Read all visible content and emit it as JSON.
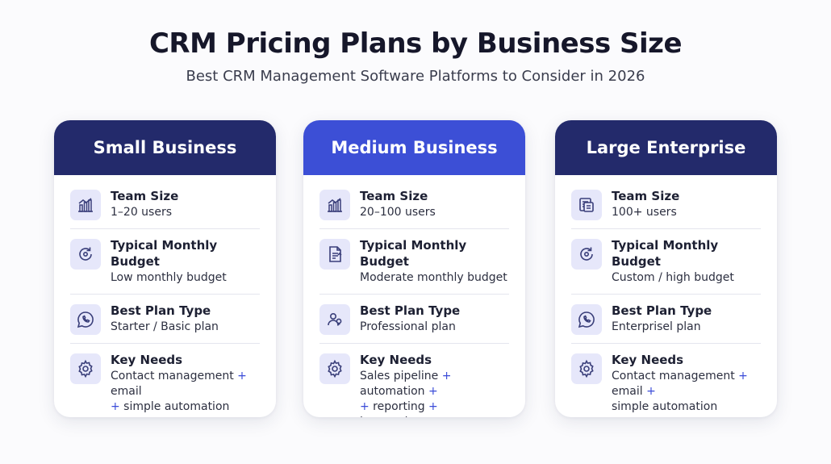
{
  "title": "CRM Pricing Plans by Business Size",
  "subtitle": "Best CRM Management Software Platforms to Consider in 2026",
  "colors": {
    "header_dark": "#232a6b",
    "header_accent": "#3c4fd6",
    "icon_bg": "#e6e7fa",
    "icon_stroke": "#3a3f7a",
    "plus": "#3a4bd8"
  },
  "cards": [
    {
      "header": "Small Business",
      "rows": [
        {
          "icon": "bar-chart-icon",
          "label": "Team Size",
          "value": "1–20 users"
        },
        {
          "icon": "refresh-icon",
          "label": "Typical Monthly Budget",
          "value": "Low monthly budget"
        },
        {
          "icon": "chat-bubble-icon",
          "label": "Best Plan Type",
          "value": "Starter / Basic plan"
        },
        {
          "icon": "gear-icon",
          "label": "Key Needs",
          "value_parts": [
            "Contact management ",
            "+",
            " email",
            "+",
            " simple automation"
          ]
        }
      ]
    },
    {
      "header": "Medium Business",
      "rows": [
        {
          "icon": "bar-chart-icon",
          "label": "Team Size",
          "value": "20–100 users"
        },
        {
          "icon": "document-icon",
          "label": "Typical Monthly Budget",
          "value": "Moderate monthly budget"
        },
        {
          "icon": "people-icon",
          "label": "Best Plan Type",
          "value": "Professional plan"
        },
        {
          "icon": "gear-icon",
          "label": "Key Needs",
          "value_parts": [
            "Sales pipeline ",
            "+",
            " automation ",
            "+",
            " reporting ",
            "+",
            " integrations"
          ]
        }
      ]
    },
    {
      "header": "Large Enterprise",
      "rows": [
        {
          "icon": "list-doc-icon",
          "label": "Team Size",
          "value": "100+ users"
        },
        {
          "icon": "refresh-icon",
          "label": "Typical Monthly Budget",
          "value": "Custom / high budget"
        },
        {
          "icon": "chat-bubble-icon",
          "label": "Best Plan Type",
          "value": "Enterprisel plan"
        },
        {
          "icon": "gear-icon",
          "label": "Key Needs",
          "value_parts": [
            "Contact management ",
            "+",
            " email ",
            "+",
            " simple automation"
          ]
        }
      ]
    }
  ]
}
